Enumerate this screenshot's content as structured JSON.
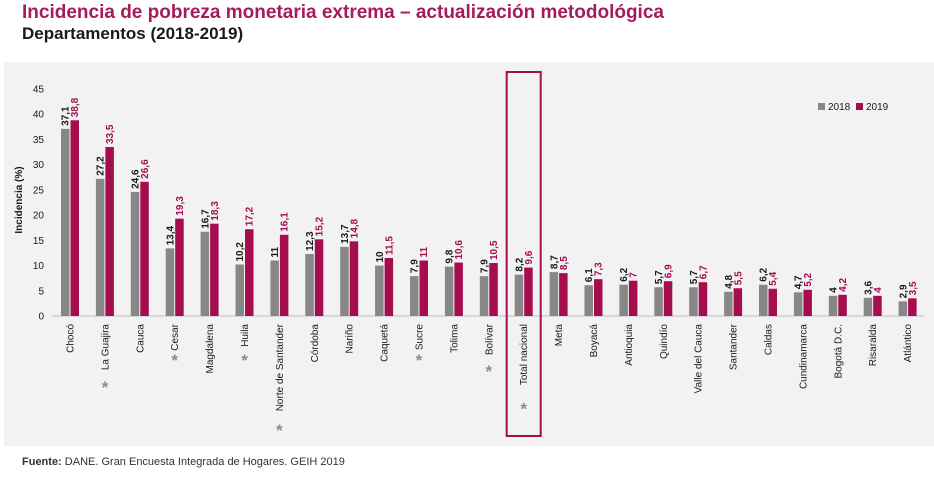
{
  "header": {
    "title": "Incidencia de pobreza monetaria extrema – actualización metodológica",
    "subtitle": "Departamentos (2018-2019)"
  },
  "footer": {
    "source_label": "Fuente:",
    "source_text": "DANE. Gran Encuesta Integrada de Hogares. GEIH 2019"
  },
  "colors": {
    "series_2018": "#878787",
    "series_2019": "#a50d4f",
    "highlight_box": "#a50d4f",
    "asterisk": "#8c8c8c"
  },
  "chart_data": {
    "type": "bar",
    "ylabel": "Incidencia (%)",
    "ylim": [
      0,
      45
    ],
    "yticks": [
      0,
      5,
      10,
      15,
      20,
      25,
      30,
      35,
      40,
      45
    ],
    "grid": false,
    "legend_position": "top-right",
    "categories": [
      "Chocó",
      "La Guajira",
      "Cauca",
      "Cesar",
      "Magdalena",
      "Huila",
      "Norte de Santander",
      "Córdoba",
      "Nariño",
      "Caquetá",
      "Sucre",
      "Tolima",
      "Bolívar",
      "Total nacional",
      "Meta",
      "Boyacá",
      "Antioquia",
      "Quindío",
      "Valle del Cauca",
      "Santander",
      "Caldas",
      "Cundinamarca",
      "Bogotá D.C.",
      "Risaralda",
      "Atlántico"
    ],
    "marked_with_asterisk": [
      "La Guajira",
      "Cesar",
      "Huila",
      "Norte de Santander",
      "Sucre",
      "Bolívar",
      "Total nacional"
    ],
    "highlighted": "Total nacional",
    "series": [
      {
        "name": "2018",
        "values": [
          37.1,
          27.2,
          24.6,
          13.4,
          16.7,
          10.2,
          11,
          12.3,
          13.7,
          10,
          7.9,
          9.8,
          7.9,
          8.2,
          8.7,
          6.1,
          6.2,
          5.7,
          5.7,
          4.8,
          6.2,
          4.7,
          4,
          3.6,
          2.9
        ],
        "labels": [
          "37,1",
          "27,2",
          "24,6",
          "13,4",
          "16,7",
          "10,2",
          "11",
          "12,3",
          "13,7",
          "10",
          "7,9",
          "9,8",
          "7,9",
          "8,2",
          "8,7",
          "6,1",
          "6,2",
          "5,7",
          "5,7",
          "4,8",
          "6,2",
          "4,7",
          "4",
          "3,6",
          "2,9"
        ]
      },
      {
        "name": "2019",
        "values": [
          38.8,
          33.5,
          26.6,
          19.3,
          18.3,
          17.2,
          16.1,
          15.2,
          14.8,
          11.5,
          11,
          10.6,
          10.5,
          9.6,
          8.5,
          7.3,
          7,
          6.9,
          6.7,
          5.5,
          5.4,
          5.2,
          4.2,
          4,
          3.5
        ],
        "labels": [
          "38,8",
          "33,5",
          "26,6",
          "19,3",
          "18,3",
          "17,2",
          "16,1",
          "15,2",
          "14,8",
          "11,5",
          "11",
          "10,6",
          "10,5",
          "9,6",
          "8,5",
          "7,3",
          "7",
          "6,9",
          "6,7",
          "5,5",
          "5,4",
          "5,2",
          "4,2",
          "4",
          "3,5"
        ]
      }
    ]
  }
}
